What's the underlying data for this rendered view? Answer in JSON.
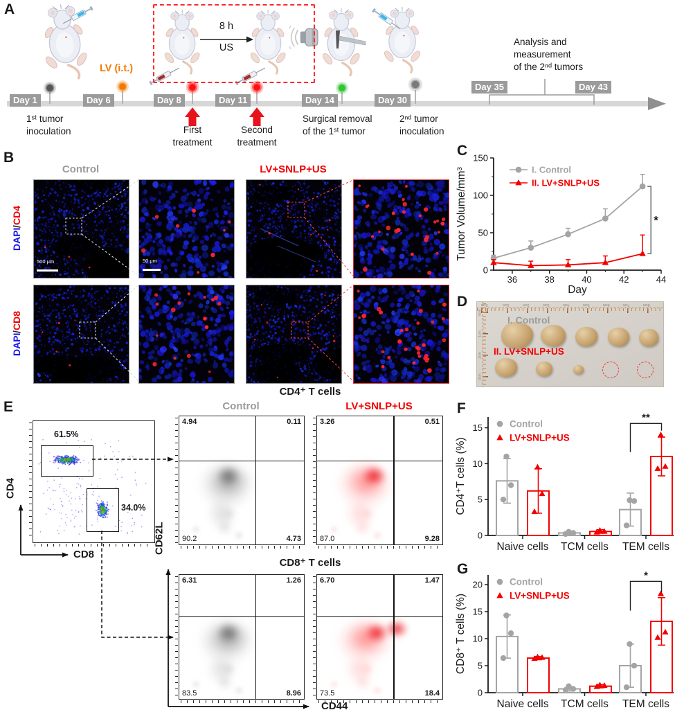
{
  "panelA": {
    "label": "A",
    "lv_it": "LV (i.t.)",
    "us_hours": "8 h",
    "us": "US",
    "days": [
      "Day 1",
      "Day 6",
      "Day 8",
      "Day 11",
      "Day 14",
      "Day 30",
      "Day 35",
      "Day 43"
    ],
    "captions": {
      "inoc1": "1ˢᵗ tumor\ninoculation",
      "first": "First\ntreatment",
      "second": "Second\ntreatment",
      "surgical": "Surgical removal\nof the 1ˢᵗ tumor",
      "inoc2": "2ⁿᵈ tumor\ninoculation",
      "analysis": "Analysis and\nmeasurement\nof the 2ⁿᵈ tumors"
    }
  },
  "panelB": {
    "label": "B",
    "col_control": "Control",
    "col_treated": "LV+SNLP+US",
    "rows": [
      {
        "stain": "DAPI",
        "sep": "/",
        "marker": "CD4"
      },
      {
        "stain": "DAPI",
        "sep": "/",
        "marker": "CD8"
      }
    ],
    "scale_wide": "500 μm",
    "scale_zoom": "50 μm"
  },
  "panelC": {
    "label": "C"
  },
  "panelD": {
    "label": "D",
    "row1": "I. Control",
    "row2": "II. LV+SNLP+US",
    "ruler_top": [
      "0cm",
      "1cm",
      "2cm",
      "3cm",
      "4cm",
      "5cm",
      "6cm",
      "7cm",
      "8cm"
    ],
    "ruler_left": [
      "0cm",
      "1cm",
      "2cm",
      "3cm"
    ]
  },
  "panelE": {
    "label": "E",
    "gate_cd4_pct": "61.5%",
    "gate_cd8_pct": "34.0%",
    "axis_cd4": "CD4",
    "axis_cd8": "CD8",
    "axis_cd62l": "CD62L",
    "axis_cd44": "CD44",
    "title_cd4": "CD4⁺ T cells",
    "title_cd8": "CD8⁺ T cells",
    "col_control": "Control",
    "col_treated": "LV+SNLP+US",
    "quads": {
      "cd4_control": [
        "4.94",
        "0.11",
        "90.2",
        "4.73"
      ],
      "cd4_treated": [
        "3.26",
        "0.51",
        "87.0",
        "9.28"
      ],
      "cd8_control": [
        "6.31",
        "1.26",
        "83.5",
        "8.96"
      ],
      "cd8_treated": [
        "6.70",
        "1.47",
        "73.5",
        "18.4"
      ]
    }
  },
  "panelF": {
    "label": "F"
  },
  "panelG": {
    "label": "G"
  },
  "chart_data": [
    {
      "id": "C",
      "type": "line",
      "xlabel": "Day",
      "ylabel": "Tumor Volume/mm³",
      "xlim": [
        35,
        44
      ],
      "ylim": [
        0,
        150
      ],
      "xticks": [
        36,
        38,
        40,
        42,
        44
      ],
      "yticks": [
        0,
        50,
        100,
        150
      ],
      "legend_position": "top-left",
      "grid": false,
      "series": [
        {
          "name": "I. Control",
          "color": "#a4a4a4",
          "marker": "circle",
          "x": [
            35,
            37,
            39,
            41,
            43
          ],
          "y": [
            16,
            30,
            48,
            69,
            112
          ],
          "err": [
            4,
            9,
            8,
            13,
            16
          ]
        },
        {
          "name": "II. LV+SNLP+US",
          "color": "#f20000",
          "marker": "triangle",
          "x": [
            35,
            37,
            39,
            41,
            43
          ],
          "y": [
            10,
            6,
            7,
            10,
            22
          ],
          "err": [
            4,
            6,
            7,
            9,
            25
          ]
        }
      ],
      "significance": {
        "label": "*",
        "between": [
          "I. Control",
          "II. LV+SNLP+US"
        ],
        "at_x": 43
      }
    },
    {
      "id": "F",
      "type": "bar",
      "ylabel": "CD4⁺T cells (%)",
      "ylim": [
        0,
        16.5
      ],
      "yticks": [
        0,
        5,
        10,
        15
      ],
      "categories": [
        "Naive cells",
        "TCM cells",
        "TEM cells"
      ],
      "legend_position": "top-left",
      "grid": false,
      "series": [
        {
          "name": "Control",
          "color": "#a4a4a4",
          "marker": "circle",
          "values": [
            7.6,
            0.35,
            3.6
          ],
          "err": [
            3.1,
            0.2,
            2.3
          ],
          "points": [
            [
              5.0,
              7.0,
              11.0
            ],
            [
              0.2,
              0.35,
              0.5
            ],
            [
              1.4,
              4.8,
              4.9
            ]
          ]
        },
        {
          "name": "LV+SNLP+US",
          "color": "#f20000",
          "marker": "triangle",
          "values": [
            6.2,
            0.55,
            11.0
          ],
          "err": [
            3.1,
            0.25,
            2.7
          ],
          "points": [
            [
              3.3,
              5.8,
              9.5
            ],
            [
              0.45,
              0.55,
              0.7
            ],
            [
              9.3,
              9.6,
              14.0
            ]
          ]
        }
      ],
      "significance": {
        "label": "**",
        "on": "TEM cells"
      }
    },
    {
      "id": "G",
      "type": "bar",
      "ylabel": "CD8⁺ T cells (%)",
      "ylim": [
        0,
        21.8
      ],
      "yticks": [
        0,
        5,
        10,
        15,
        20
      ],
      "categories": [
        "Naive cells",
        "TCM cells",
        "TEM cells"
      ],
      "legend_position": "top-left",
      "grid": false,
      "series": [
        {
          "name": "Control",
          "color": "#a4a4a4",
          "marker": "circle",
          "values": [
            10.4,
            0.7,
            5.0
          ],
          "err": [
            4.0,
            0.4,
            4.0
          ],
          "points": [
            [
              6.4,
              11.0,
              14.3
            ],
            [
              0.5,
              0.7,
              1.2
            ],
            [
              1.0,
              5.0,
              9.0
            ]
          ]
        },
        {
          "name": "LV+SNLP+US",
          "color": "#f20000",
          "marker": "triangle",
          "values": [
            6.4,
            1.2,
            13.2
          ],
          "err": [
            0.3,
            0.3,
            4.4
          ],
          "points": [
            [
              6.3,
              6.5,
              6.6
            ],
            [
              1.1,
              1.3,
              1.4
            ],
            [
              10.2,
              11.2,
              18.3
            ]
          ]
        }
      ],
      "significance": {
        "label": "*",
        "on": "TEM cells"
      }
    }
  ]
}
